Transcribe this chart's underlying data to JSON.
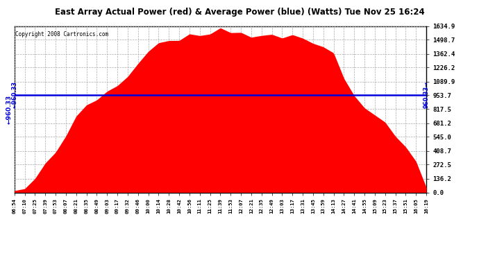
{
  "title": "East Array Actual Power (red) & Average Power (blue) (Watts) Tue Nov 25 16:24",
  "copyright": "Copyright 2008 Cartronics.com",
  "average_power": 960.33,
  "ymax": 1634.9,
  "ymin": 0.0,
  "yticks": [
    0.0,
    136.2,
    272.5,
    408.7,
    545.0,
    681.2,
    817.5,
    953.7,
    1089.9,
    1226.2,
    1362.4,
    1498.7,
    1634.9
  ],
  "fill_color": "#FF0000",
  "line_color": "#0000DD",
  "bg_color": "#FFFFFF",
  "grid_color": "#AAAAAA",
  "x_labels": [
    "06:54",
    "07:10",
    "07:25",
    "07:39",
    "07:53",
    "08:07",
    "08:21",
    "08:35",
    "08:49",
    "09:03",
    "09:17",
    "09:32",
    "09:46",
    "10:00",
    "10:14",
    "10:28",
    "10:42",
    "10:56",
    "11:11",
    "11:25",
    "11:39",
    "11:53",
    "12:07",
    "12:21",
    "12:35",
    "12:49",
    "13:03",
    "13:17",
    "13:31",
    "13:45",
    "13:59",
    "14:13",
    "14:27",
    "14:41",
    "14:55",
    "15:09",
    "15:23",
    "15:37",
    "15:51",
    "16:05",
    "16:19"
  ],
  "power_curve": [
    5,
    40,
    120,
    250,
    400,
    560,
    710,
    840,
    920,
    980,
    1060,
    1150,
    1260,
    1370,
    1460,
    1510,
    1540,
    1560,
    1570,
    1575,
    1580,
    1575,
    1570,
    1560,
    1555,
    1550,
    1545,
    1540,
    1530,
    1490,
    1420,
    1350,
    1100,
    920,
    820,
    750,
    680,
    600,
    480,
    300,
    30
  ],
  "noise_seed": 42
}
